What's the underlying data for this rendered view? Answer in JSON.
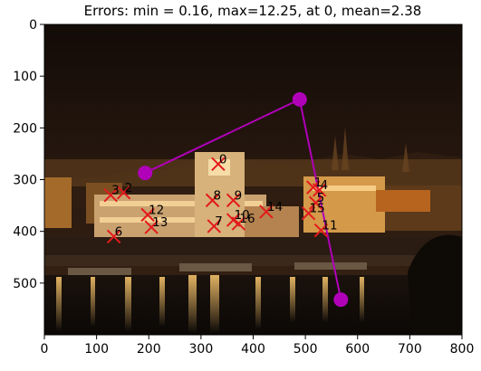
{
  "chart_data": {
    "type": "scatter",
    "title": "Errors: min = 0.16, max=12.25, at 0, mean=2.38",
    "xlabel": "",
    "ylabel": "",
    "xlim": [
      0,
      800
    ],
    "ylim": [
      600,
      0
    ],
    "y_axis_inverted": true,
    "grid": false,
    "x_ticks": [
      0,
      100,
      200,
      300,
      400,
      500,
      600,
      700,
      800
    ],
    "y_ticks": [
      0,
      100,
      200,
      300,
      400,
      500
    ],
    "background": "night photograph of a riverside cityscape with illuminated buildings",
    "polyline": {
      "color": "#b000b8",
      "points": [
        {
          "x": 193,
          "y": 287
        },
        {
          "x": 489,
          "y": 145
        },
        {
          "x": 568,
          "y": 532
        }
      ]
    },
    "markers": [
      {
        "label": "0",
        "x": 333,
        "y": 270
      },
      {
        "label": "1",
        "x": 515,
        "y": 315
      },
      {
        "label": "2",
        "x": 152,
        "y": 325
      },
      {
        "label": "3",
        "x": 127,
        "y": 330
      },
      {
        "label": "4",
        "x": 527,
        "y": 320
      },
      {
        "label": "5",
        "x": 520,
        "y": 345
      },
      {
        "label": "6",
        "x": 133,
        "y": 410
      },
      {
        "label": "7",
        "x": 325,
        "y": 390
      },
      {
        "label": "8",
        "x": 322,
        "y": 340
      },
      {
        "label": "9",
        "x": 362,
        "y": 340
      },
      {
        "label": "10",
        "x": 362,
        "y": 378
      },
      {
        "label": "11",
        "x": 530,
        "y": 398
      },
      {
        "label": "12",
        "x": 198,
        "y": 368
      },
      {
        "label": "13",
        "x": 205,
        "y": 392
      },
      {
        "label": "14",
        "x": 425,
        "y": 362
      },
      {
        "label": "15",
        "x": 506,
        "y": 365
      },
      {
        "label": "16",
        "x": 372,
        "y": 385
      }
    ],
    "marker_color": "#e31a1c"
  }
}
